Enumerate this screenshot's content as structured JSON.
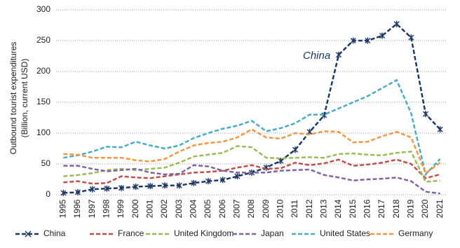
{
  "chart_data": {
    "type": "line",
    "y_label": [
      "Outbound tourist expenditures",
      "(Billion, current USD)"
    ],
    "annotation": "China",
    "categories": [
      "1995",
      "1996",
      "1997",
      "1998",
      "1999",
      "2000",
      "2001",
      "2002",
      "2003",
      "2004",
      "2005",
      "2006",
      "2007",
      "2008",
      "2009",
      "2010",
      "2011",
      "2012",
      "2013",
      "2014",
      "2015",
      "2016",
      "2017",
      "2018",
      "2019",
      "2020",
      "2021"
    ],
    "series": [
      {
        "name": "China",
        "color": "#1f3864",
        "marker": "x",
        "values": [
          3,
          4,
          9,
          10,
          11,
          13,
          14,
          15,
          15,
          19,
          22,
          24,
          30,
          36,
          44,
          55,
          73,
          102,
          129,
          227,
          250,
          250,
          258,
          277,
          255,
          131,
          106
        ]
      },
      {
        "name": "France",
        "color": "#c0504d",
        "values": [
          20,
          22,
          18,
          19,
          30,
          28,
          27,
          30,
          33,
          36,
          37,
          39,
          44,
          48,
          42,
          43,
          52,
          48,
          51,
          57,
          47,
          49,
          52,
          57,
          50,
          27,
          33
        ]
      },
      {
        "name": "United Kingdom",
        "color": "#9bbb59",
        "values": [
          30,
          32,
          35,
          40,
          42,
          40,
          42,
          44,
          52,
          62,
          65,
          68,
          79,
          77,
          60,
          59,
          60,
          61,
          60,
          66,
          67,
          65,
          64,
          68,
          70,
          21,
          23
        ]
      },
      {
        "name": "Japan",
        "color": "#8064a2",
        "values": [
          47,
          47,
          42,
          38,
          40,
          42,
          36,
          33,
          34,
          48,
          46,
          39,
          36,
          36,
          36,
          39,
          40,
          41,
          32,
          28,
          23,
          25,
          26,
          28,
          22,
          5,
          2
        ]
      },
      {
        "name": "United States",
        "color": "#4bacc6",
        "values": [
          60,
          64,
          70,
          78,
          77,
          86,
          80,
          75,
          80,
          92,
          100,
          107,
          112,
          120,
          103,
          108,
          116,
          130,
          130,
          140,
          150,
          160,
          173,
          186,
          132,
          33,
          58
        ]
      },
      {
        "name": "Germany",
        "color": "#f79646",
        "values": [
          66,
          65,
          60,
          60,
          60,
          56,
          54,
          58,
          70,
          80,
          84,
          86,
          93,
          106,
          93,
          91,
          100,
          98,
          103,
          102,
          85,
          86,
          95,
          102,
          93,
          35,
          52
        ]
      }
    ],
    "ylim": [
      0,
      300
    ],
    "yticks": [
      0,
      50,
      100,
      150,
      200,
      250,
      300
    ],
    "grid": true
  }
}
